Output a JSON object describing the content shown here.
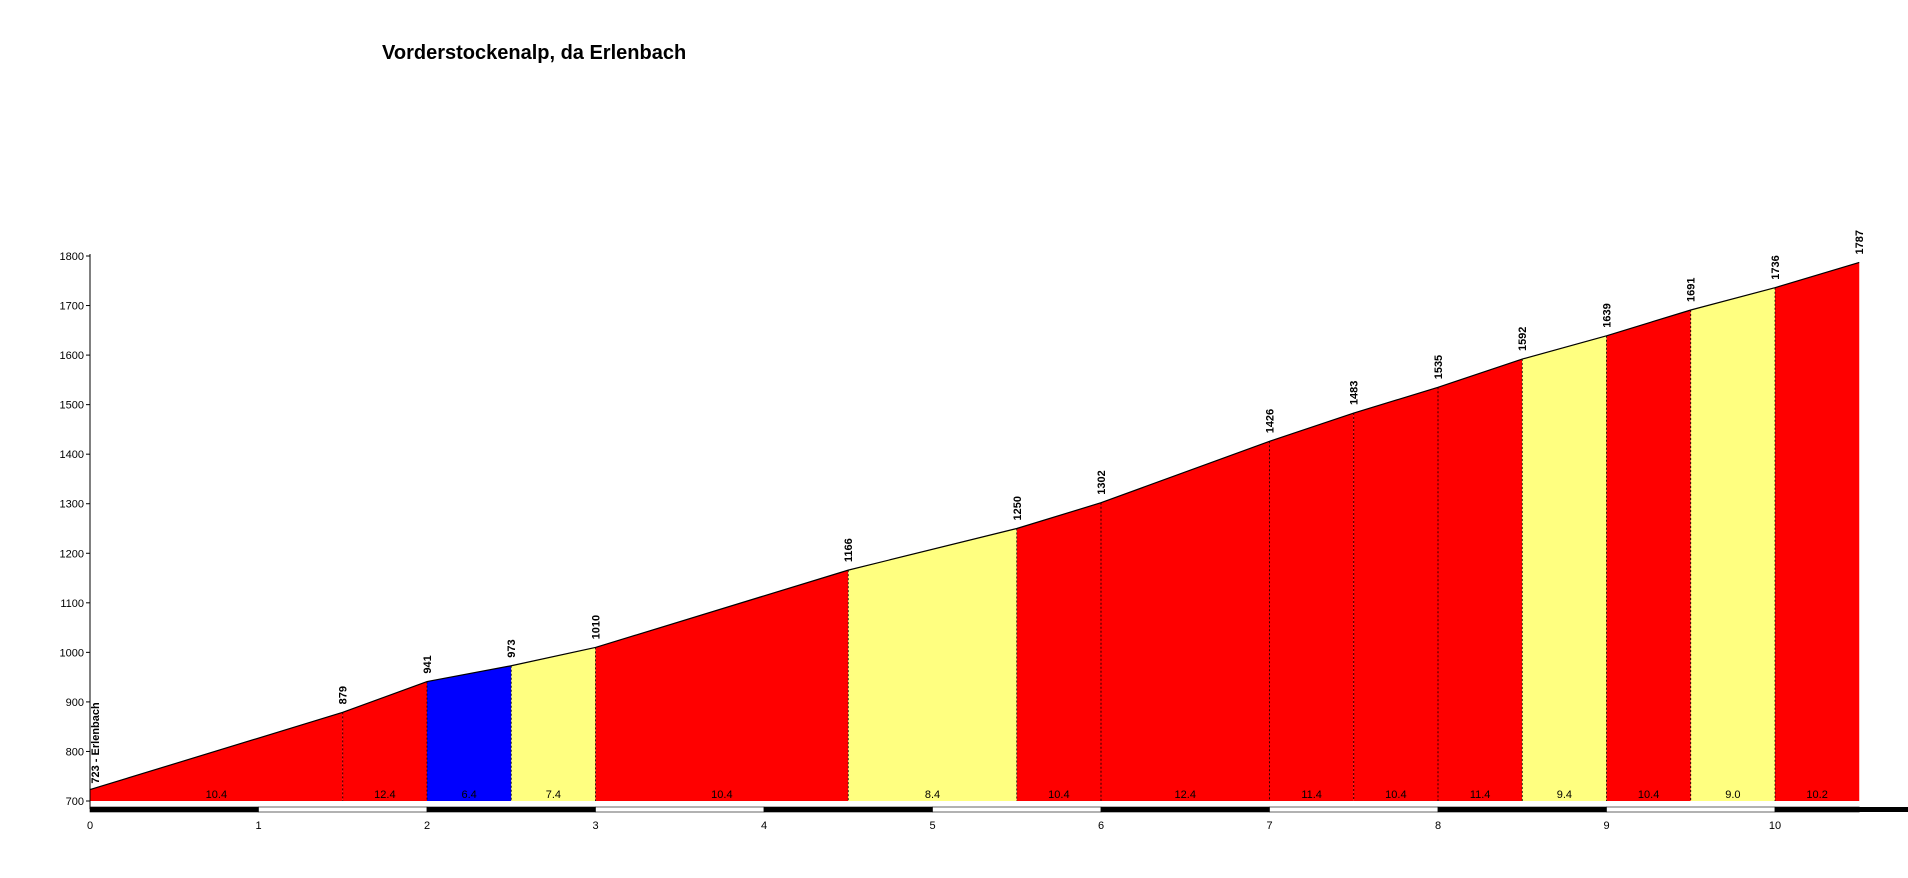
{
  "chart_data": {
    "type": "area",
    "title": "Vorderstockenalp, da Erlenbach",
    "xlabel": "",
    "ylabel": "",
    "xlim": [
      0,
      10.5
    ],
    "ylim": [
      700,
      1800
    ],
    "x_ticks": [
      0,
      1,
      2,
      3,
      4,
      5,
      6,
      7,
      8,
      9,
      10
    ],
    "y_ticks": [
      700,
      800,
      900,
      1000,
      1100,
      1200,
      1300,
      1400,
      1500,
      1600,
      1700,
      1800
    ],
    "grid": false,
    "start_label": "723 - Erlenbach",
    "points": [
      {
        "x": 0,
        "y": 723,
        "label": "723 - Erlenbach"
      },
      {
        "x": 1.5,
        "y": 879,
        "label": "879"
      },
      {
        "x": 2.0,
        "y": 941,
        "label": "941"
      },
      {
        "x": 2.5,
        "y": 973,
        "label": "973"
      },
      {
        "x": 3.0,
        "y": 1010,
        "label": "1010"
      },
      {
        "x": 4.5,
        "y": 1166,
        "label": "1166"
      },
      {
        "x": 5.5,
        "y": 1250,
        "label": "1250"
      },
      {
        "x": 6.0,
        "y": 1302,
        "label": "1302"
      },
      {
        "x": 7.0,
        "y": 1426,
        "label": "1426"
      },
      {
        "x": 7.5,
        "y": 1483,
        "label": "1483"
      },
      {
        "x": 8.0,
        "y": 1535,
        "label": "1535"
      },
      {
        "x": 8.5,
        "y": 1592,
        "label": "1592"
      },
      {
        "x": 9.0,
        "y": 1639,
        "label": "1639"
      },
      {
        "x": 9.5,
        "y": 1691,
        "label": "1691"
      },
      {
        "x": 10.0,
        "y": 1736,
        "label": "1736"
      },
      {
        "x": 10.5,
        "y": 1787,
        "label": "1787"
      }
    ],
    "segments": [
      {
        "from": 0,
        "to": 1.5,
        "gradient": "10.4",
        "color": "#ff0000"
      },
      {
        "from": 1.5,
        "to": 2.0,
        "gradient": "12.4",
        "color": "#ff0000"
      },
      {
        "from": 2.0,
        "to": 2.5,
        "gradient": "6.4",
        "color": "#0000ff"
      },
      {
        "from": 2.5,
        "to": 3.0,
        "gradient": "7.4",
        "color": "#ffff80"
      },
      {
        "from": 3.0,
        "to": 4.5,
        "gradient": "10.4",
        "color": "#ff0000"
      },
      {
        "from": 4.5,
        "to": 5.5,
        "gradient": "8.4",
        "color": "#ffff80"
      },
      {
        "from": 5.5,
        "to": 6.0,
        "gradient": "10.4",
        "color": "#ff0000"
      },
      {
        "from": 6.0,
        "to": 7.0,
        "gradient": "12.4",
        "color": "#ff0000"
      },
      {
        "from": 7.0,
        "to": 7.5,
        "gradient": "11.4",
        "color": "#ff0000"
      },
      {
        "from": 7.5,
        "to": 8.0,
        "gradient": "10.4",
        "color": "#ff0000"
      },
      {
        "from": 8.0,
        "to": 8.5,
        "gradient": "11.4",
        "color": "#ff0000"
      },
      {
        "from": 8.5,
        "to": 9.0,
        "gradient": "9.4",
        "color": "#ffff80"
      },
      {
        "from": 9.0,
        "to": 9.5,
        "gradient": "10.4",
        "color": "#ff0000"
      },
      {
        "from": 9.5,
        "to": 10.0,
        "gradient": "9.0",
        "color": "#ffff80"
      },
      {
        "from": 10.0,
        "to": 10.5,
        "gradient": "10.2",
        "color": "#ff0000"
      }
    ],
    "km_bar_colors": {
      "dark": "#000000",
      "light": "#ffffff"
    }
  }
}
